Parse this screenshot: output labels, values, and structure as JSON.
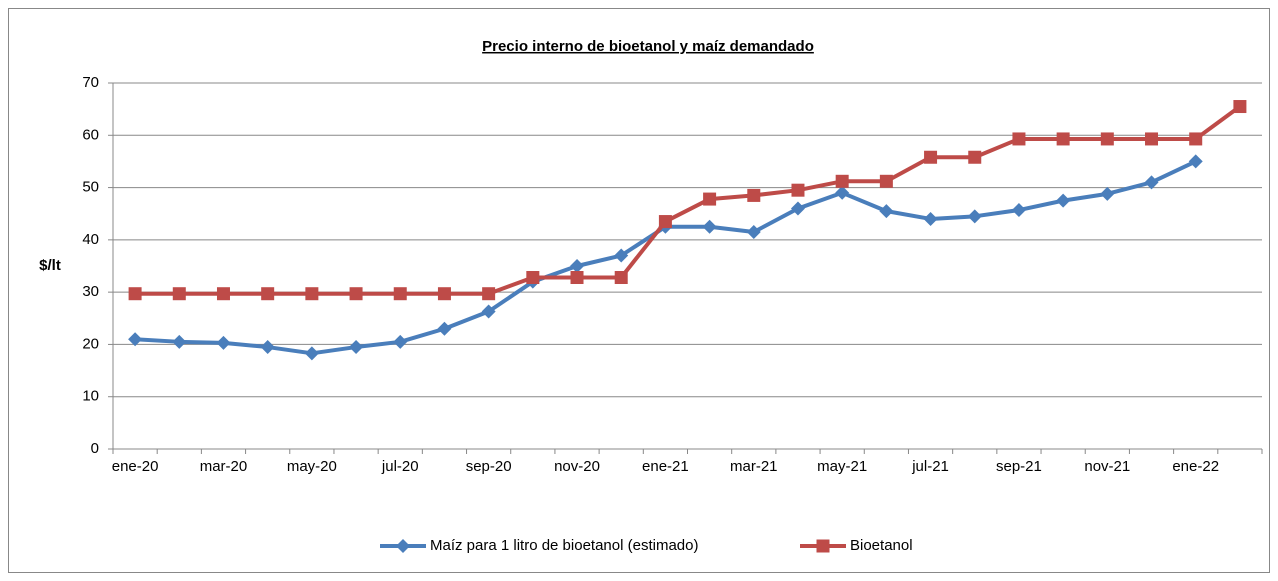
{
  "chart_data": {
    "type": "line",
    "title": "Precio interno de bioetanol y maíz demandado",
    "y_label": "$/lt",
    "categories": [
      "ene-20",
      null,
      "mar-20",
      null,
      "may-20",
      null,
      "jul-20",
      null,
      "sep-20",
      null,
      "nov-20",
      null,
      "ene-21",
      null,
      "mar-21",
      null,
      "may-21",
      null,
      "jul-21",
      null,
      "sep-21",
      null,
      "nov-21",
      null,
      "ene-22",
      null
    ],
    "series": [
      {
        "name": "Maíz para 1 litro de bioetanol (estimado)",
        "color": "#4a7ebb",
        "marker": "diamond",
        "values": [
          21,
          20.5,
          20.3,
          19.5,
          18.3,
          19.5,
          20.5,
          23,
          26.3,
          32,
          35,
          37,
          42.5,
          42.5,
          41.5,
          46,
          49,
          45.5,
          44,
          44.5,
          45.7,
          47.5,
          48.8,
          51,
          55,
          null
        ]
      },
      {
        "name": "Bioetanol",
        "color": "#be4b48",
        "marker": "square",
        "values": [
          29.7,
          29.7,
          29.7,
          29.7,
          29.7,
          29.7,
          29.7,
          29.7,
          29.7,
          32.8,
          32.8,
          32.8,
          43.5,
          47.8,
          48.5,
          49.5,
          51.2,
          51.2,
          55.8,
          55.8,
          59.3,
          59.3,
          59.3,
          59.3,
          59.3,
          65.5
        ]
      }
    ],
    "ylim": [
      0,
      70
    ],
    "yticks": [
      0,
      10,
      20,
      30,
      40,
      50,
      60,
      70
    ],
    "grid": true,
    "legend": "bottom"
  }
}
